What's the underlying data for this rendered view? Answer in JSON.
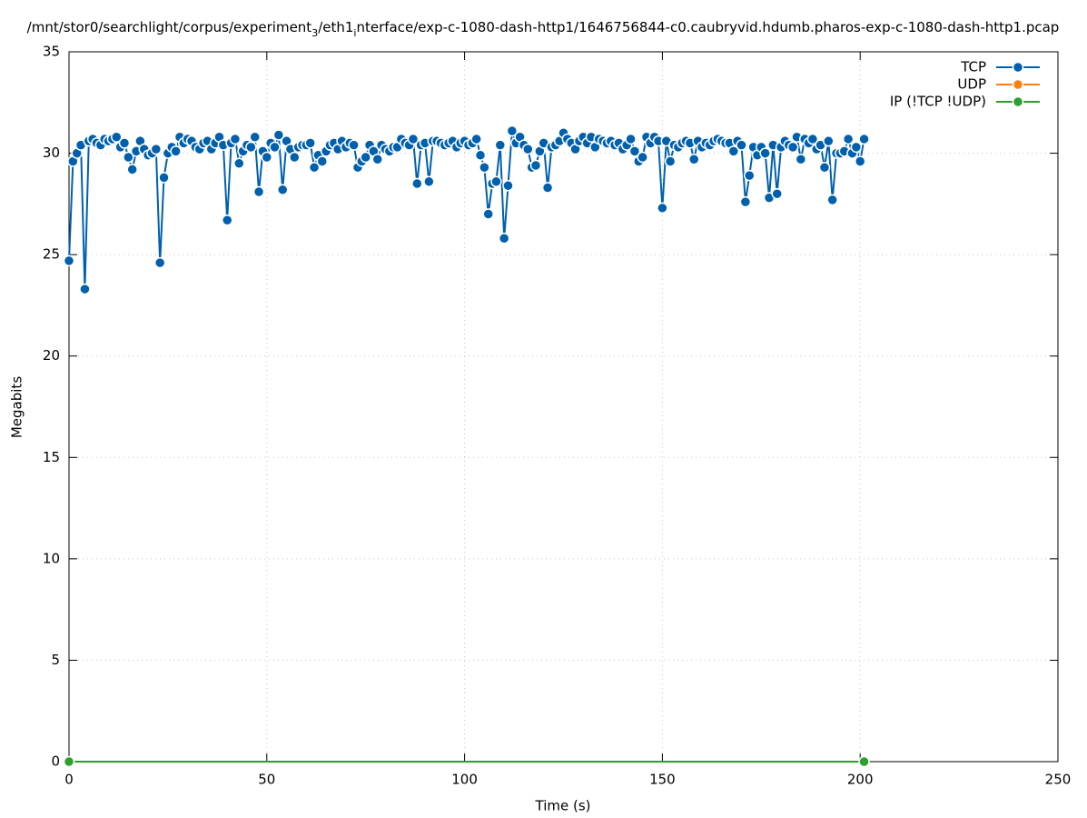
{
  "chart_data": {
    "type": "line",
    "title": [
      "/mnt/stor0/searchlight/corpus/experiment",
      "3",
      "/eth1",
      "i",
      "nterface/exp-c-1080-dash-http1/1646756844-c0.caubryvid.hdumb.pharos-exp-c-1080-dash-http1.pcap"
    ],
    "xlabel": "Time (s)",
    "ylabel": "Megabits",
    "xlim": [
      0,
      250
    ],
    "xticks": [
      0,
      50,
      100,
      150,
      200,
      250
    ],
    "ylim": [
      0,
      35
    ],
    "yticks": [
      0,
      5,
      10,
      15,
      20,
      25,
      30,
      35
    ],
    "grid": true,
    "legend": "top-right",
    "series": [
      {
        "name": "TCP",
        "color": "#0060ad",
        "x": [
          0,
          1,
          2,
          3,
          4,
          5,
          6,
          7,
          8,
          9,
          10,
          11,
          12,
          13,
          14,
          15,
          16,
          17,
          18,
          19,
          20,
          21,
          22,
          23,
          24,
          25,
          26,
          27,
          28,
          29,
          30,
          31,
          32,
          33,
          34,
          35,
          36,
          37,
          38,
          39,
          40,
          41,
          42,
          43,
          44,
          45,
          46,
          47,
          48,
          49,
          50,
          51,
          52,
          53,
          54,
          55,
          56,
          57,
          58,
          59,
          60,
          61,
          62,
          63,
          64,
          65,
          66,
          67,
          68,
          69,
          70,
          71,
          72,
          73,
          74,
          75,
          76,
          77,
          78,
          79,
          80,
          81,
          82,
          83,
          84,
          85,
          86,
          87,
          88,
          89,
          90,
          91,
          92,
          93,
          94,
          95,
          96,
          97,
          98,
          99,
          100,
          101,
          102,
          103,
          104,
          105,
          106,
          107,
          108,
          109,
          110,
          111,
          112,
          113,
          114,
          115,
          116,
          117,
          118,
          119,
          120,
          121,
          122,
          123,
          124,
          125,
          126,
          127,
          128,
          129,
          130,
          131,
          132,
          133,
          134,
          135,
          136,
          137,
          138,
          139,
          140,
          141,
          142,
          143,
          144,
          145,
          146,
          147,
          148,
          149,
          150,
          151,
          152,
          153,
          154,
          155,
          156,
          157,
          158,
          159,
          160,
          161,
          162,
          163,
          164,
          165,
          166,
          167,
          168,
          169,
          170,
          171,
          172,
          173,
          174,
          175,
          176,
          177,
          178,
          179,
          180,
          181,
          182,
          183,
          184,
          185,
          186,
          187,
          188,
          189,
          190,
          191,
          192,
          193,
          194,
          195,
          196,
          197,
          198,
          199,
          200,
          201
        ],
        "values": [
          24.7,
          29.6,
          30.0,
          30.4,
          23.3,
          30.6,
          30.7,
          30.5,
          30.4,
          30.7,
          30.6,
          30.7,
          30.8,
          30.3,
          30.5,
          29.8,
          29.2,
          30.1,
          30.6,
          30.2,
          29.9,
          30.0,
          30.2,
          24.6,
          28.8,
          30.0,
          30.3,
          30.1,
          30.8,
          30.5,
          30.7,
          30.6,
          30.3,
          30.2,
          30.5,
          30.6,
          30.2,
          30.5,
          30.8,
          30.4,
          26.7,
          30.5,
          30.7,
          29.5,
          30.1,
          30.4,
          30.3,
          30.8,
          28.1,
          30.1,
          29.8,
          30.5,
          30.3,
          30.9,
          28.2,
          30.6,
          30.2,
          29.8,
          30.3,
          30.4,
          30.4,
          30.5,
          29.3,
          29.9,
          29.6,
          30.1,
          30.4,
          30.5,
          30.2,
          30.6,
          30.3,
          30.5,
          30.4,
          29.3,
          29.6,
          29.8,
          30.4,
          30.1,
          29.7,
          30.4,
          30.2,
          30.1,
          30.3,
          30.3,
          30.7,
          30.5,
          30.4,
          30.7,
          28.5,
          30.4,
          30.5,
          28.6,
          30.6,
          30.6,
          30.5,
          30.4,
          30.5,
          30.6,
          30.3,
          30.5,
          30.6,
          30.4,
          30.5,
          30.7,
          29.9,
          29.3,
          27.0,
          28.5,
          28.6,
          30.4,
          25.8,
          28.4,
          31.1,
          30.5,
          30.8,
          30.4,
          30.2,
          29.3,
          29.4,
          30.1,
          30.5,
          28.3,
          30.3,
          30.4,
          30.6,
          31.0,
          30.7,
          30.5,
          30.2,
          30.6,
          30.8,
          30.5,
          30.8,
          30.3,
          30.7,
          30.6,
          30.5,
          30.6,
          30.4,
          30.5,
          30.2,
          30.4,
          30.7,
          30.1,
          29.6,
          29.8,
          30.8,
          30.5,
          30.8,
          30.6,
          27.3,
          30.6,
          29.6,
          30.4,
          30.3,
          30.5,
          30.6,
          30.5,
          29.7,
          30.6,
          30.3,
          30.5,
          30.4,
          30.6,
          30.7,
          30.6,
          30.5,
          30.5,
          30.1,
          30.6,
          30.4,
          27.6,
          28.9,
          30.3,
          29.9,
          30.3,
          30.0,
          27.8,
          30.4,
          28.0,
          30.3,
          30.6,
          30.4,
          30.3,
          30.8,
          29.7,
          30.7,
          30.5,
          30.7,
          30.2,
          30.4,
          29.3,
          30.6,
          27.7,
          30.0,
          30.0,
          30.1,
          30.7,
          30.0,
          30.3,
          29.6,
          30.7
        ]
      },
      {
        "name": "UDP",
        "color": "#ff7f0e",
        "x": [],
        "values": []
      },
      {
        "name": "IP (!TCP  !UDP)",
        "color": "#2ca02c",
        "x": [
          0,
          201
        ],
        "values": [
          0,
          0
        ]
      }
    ]
  }
}
